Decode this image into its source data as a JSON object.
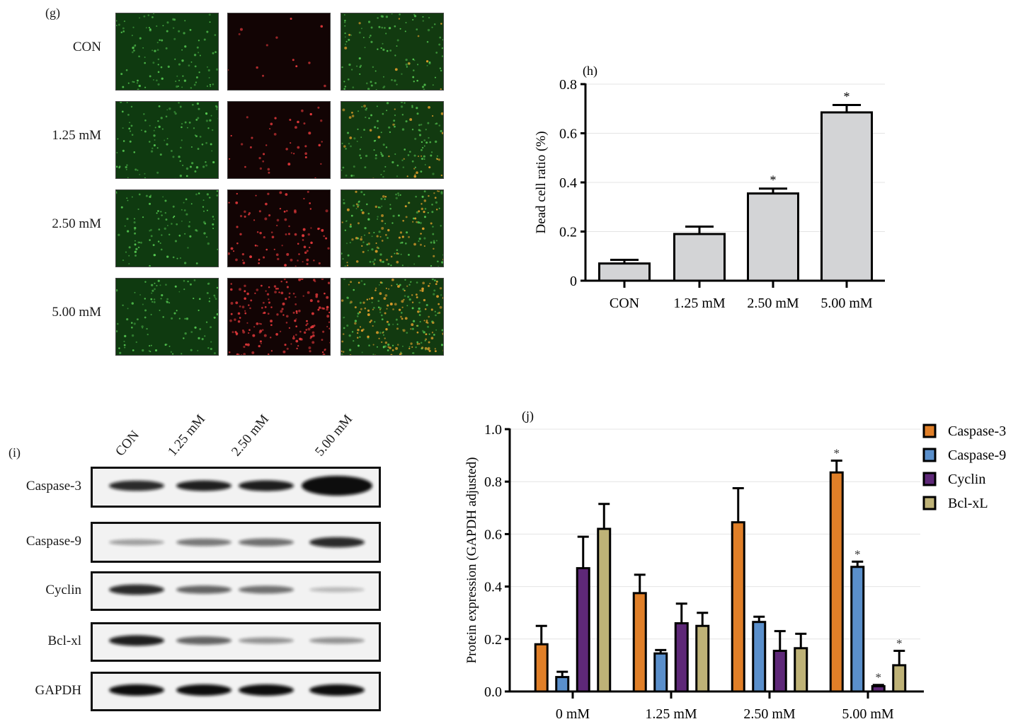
{
  "panel_g": {
    "label": "(g)",
    "rows": [
      {
        "label": "CON",
        "red_density": 14,
        "merge_red": 10
      },
      {
        "label": "1.25 mM",
        "red_density": 40,
        "merge_red": 30
      },
      {
        "label": "2.50 mM",
        "red_density": 90,
        "merge_red": 70
      },
      {
        "label": "5.00 mM",
        "red_density": 170,
        "merge_red": 130
      }
    ],
    "channel_colors": {
      "green_bg": "#0f3a10",
      "red_bg": "#120404",
      "merge_bg": "#123a10",
      "green_dot": "#5fdc5a",
      "red_dot": "#e0383a",
      "merge_dot": "#d89a2a"
    }
  },
  "panel_i": {
    "label": "(i)",
    "lanes": [
      "CON",
      "1.25 mM",
      "2.50 mM",
      "5.00 mM"
    ],
    "blots": [
      {
        "label": "Caspase-3",
        "intensities": [
          0.85,
          0.9,
          0.92,
          1.0
        ]
      },
      {
        "label": "Caspase-9",
        "intensities": [
          0.25,
          0.45,
          0.5,
          0.85
        ]
      },
      {
        "label": "Cyclin",
        "intensities": [
          0.85,
          0.55,
          0.5,
          0.12
        ]
      },
      {
        "label": "Bcl-xl",
        "intensities": [
          0.9,
          0.55,
          0.3,
          0.3
        ]
      },
      {
        "label": "GAPDH",
        "intensities": [
          1.0,
          1.0,
          1.0,
          1.0
        ]
      }
    ]
  },
  "chart_data": [
    {
      "id": "h",
      "panel_label": "(h)",
      "type": "bar",
      "title": "",
      "categories": [
        "CON",
        "1.25 mM",
        "2.50 mM",
        "5.00 mM"
      ],
      "values": [
        0.07,
        0.19,
        0.355,
        0.685
      ],
      "error_upper": [
        0.085,
        0.22,
        0.375,
        0.715
      ],
      "significance": [
        "",
        "",
        "*",
        "*"
      ],
      "xlabel": "",
      "ylabel": "Dead cell ratio (%)",
      "ylim": [
        0,
        0.8
      ],
      "yticks": [
        "0",
        "0.2",
        "0.4",
        "0.6",
        "0.8"
      ],
      "bar_color": "#d3d4d6",
      "grid": true
    },
    {
      "id": "j",
      "panel_label": "(j)",
      "type": "bar",
      "title": "",
      "categories": [
        "0 mM",
        "1.25 mM",
        "2.50 mM",
        "5.00 mM"
      ],
      "series": [
        {
          "name": "Caspase-3",
          "color": "#e07f28",
          "values": [
            0.18,
            0.375,
            0.645,
            0.835
          ],
          "error_upper": [
            0.25,
            0.445,
            0.775,
            0.88
          ],
          "significance": [
            "",
            "",
            "",
            "*"
          ]
        },
        {
          "name": "Caspase-9",
          "color": "#5a8fcb",
          "values": [
            0.055,
            0.145,
            0.265,
            0.475
          ],
          "error_upper": [
            0.075,
            0.158,
            0.285,
            0.495
          ],
          "significance": [
            "",
            "",
            "",
            "*"
          ]
        },
        {
          "name": "Cyclin",
          "color": "#5e2878",
          "values": [
            0.47,
            0.26,
            0.155,
            0.02
          ],
          "error_upper": [
            0.59,
            0.335,
            0.23,
            0.025
          ],
          "significance": [
            "",
            "",
            "",
            "*"
          ]
        },
        {
          "name": "Bcl-xL",
          "color": "#beb277",
          "values": [
            0.62,
            0.25,
            0.165,
            0.1
          ],
          "error_upper": [
            0.715,
            0.3,
            0.22,
            0.155
          ],
          "significance": [
            "",
            "",
            "",
            "*"
          ]
        }
      ],
      "xlabel": "",
      "ylabel": "Protein expression (GAPDH adjusted)",
      "ylim": [
        0,
        1.0
      ],
      "yticks": [
        "0.0",
        "0.2",
        "0.4",
        "0.6",
        "0.8",
        "1.0"
      ],
      "legend_position": "right-top",
      "grid": true
    }
  ]
}
